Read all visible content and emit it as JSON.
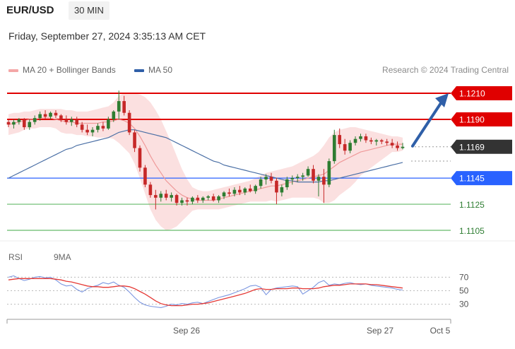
{
  "header": {
    "symbol": "EUR/USD",
    "timeframe": "30 MIN",
    "datetime": "Friday, September 27, 2024 3:35:13 AM CET",
    "credit": "Research © 2024 Trading Central"
  },
  "legend": {
    "ma20_bb": "MA 20 + Bollinger Bands",
    "ma50": "MA 50",
    "rsi": "RSI",
    "rsi_ma": "9MA"
  },
  "colors": {
    "bullish": "#2e7d32",
    "bearish": "#c62828",
    "bollinger": "#f7c6c6",
    "ma20": "#ef9a9a",
    "ma50": "#4a6fa5",
    "resistance": "#e00000",
    "support_blue": "#2962ff",
    "support_green": "#66bb6a",
    "arrow": "#2f5fa8",
    "rsi": "#7b96e0",
    "rsi_ma": "#e53935"
  },
  "chart_data": {
    "type": "candlestick",
    "price_scale": {
      "min": 1.1095,
      "max": 1.1225
    },
    "x_labels": [
      "Sep 26",
      "Sep 27",
      "Oct 5"
    ],
    "levels": [
      {
        "value": 1.121,
        "label": "1.1210",
        "kind": "resistance"
      },
      {
        "value": 1.119,
        "label": "1.1190",
        "kind": "resistance"
      },
      {
        "value": 1.1169,
        "label": "1.1169",
        "kind": "current"
      },
      {
        "value": 1.1145,
        "label": "1.1145",
        "kind": "support_blue"
      },
      {
        "value": 1.1125,
        "label": "1.1125",
        "kind": "support_green"
      },
      {
        "value": 1.1105,
        "label": "1.1105",
        "kind": "support_green"
      }
    ],
    "projection": {
      "from": 1.1169,
      "to": 1.121,
      "direction": "up"
    },
    "candles": [
      [
        1.1188,
        1.119,
        1.1184,
        1.1186
      ],
      [
        1.1186,
        1.119,
        1.1183,
        1.1188
      ],
      [
        1.1188,
        1.1191,
        1.1186,
        1.119
      ],
      [
        1.119,
        1.1191,
        1.1182,
        1.1184
      ],
      [
        1.1184,
        1.119,
        1.1182,
        1.1188
      ],
      [
        1.1188,
        1.1193,
        1.1186,
        1.1191
      ],
      [
        1.1191,
        1.1196,
        1.1189,
        1.1194
      ],
      [
        1.1194,
        1.1197,
        1.119,
        1.1192
      ],
      [
        1.1192,
        1.1196,
        1.119,
        1.1195
      ],
      [
        1.1195,
        1.1197,
        1.1191,
        1.1193
      ],
      [
        1.1193,
        1.1194,
        1.1188,
        1.119
      ],
      [
        1.119,
        1.1193,
        1.1186,
        1.1188
      ],
      [
        1.1188,
        1.1192,
        1.1185,
        1.119
      ],
      [
        1.119,
        1.1192,
        1.1184,
        1.1186
      ],
      [
        1.1186,
        1.1188,
        1.118,
        1.1182
      ],
      [
        1.1182,
        1.1186,
        1.1178,
        1.118
      ],
      [
        1.118,
        1.1184,
        1.1177,
        1.1182
      ],
      [
        1.1182,
        1.1187,
        1.118,
        1.1185
      ],
      [
        1.1185,
        1.1188,
        1.1181,
        1.1183
      ],
      [
        1.1183,
        1.1192,
        1.1182,
        1.119
      ],
      [
        1.119,
        1.1197,
        1.1188,
        1.1196
      ],
      [
        1.1196,
        1.1212,
        1.119,
        1.1204
      ],
      [
        1.1204,
        1.1208,
        1.1193,
        1.1195
      ],
      [
        1.1195,
        1.1197,
        1.1178,
        1.118
      ],
      [
        1.118,
        1.1182,
        1.1165,
        1.1168
      ],
      [
        1.1168,
        1.117,
        1.115,
        1.1153
      ],
      [
        1.1153,
        1.1155,
        1.1138,
        1.114
      ],
      [
        1.114,
        1.1142,
        1.113,
        1.1132
      ],
      [
        1.1132,
        1.1136,
        1.1121,
        1.113
      ],
      [
        1.113,
        1.1135,
        1.1127,
        1.1133
      ],
      [
        1.1133,
        1.1136,
        1.1128,
        1.113
      ],
      [
        1.113,
        1.1134,
        1.1127,
        1.1132
      ],
      [
        1.1132,
        1.1133,
        1.1124,
        1.1126
      ],
      [
        1.1126,
        1.113,
        1.1124,
        1.1128
      ],
      [
        1.1128,
        1.113,
        1.1124,
        1.1127
      ],
      [
        1.1127,
        1.1131,
        1.1125,
        1.113
      ],
      [
        1.113,
        1.1132,
        1.1126,
        1.1128
      ],
      [
        1.1128,
        1.1131,
        1.1126,
        1.113
      ],
      [
        1.113,
        1.1132,
        1.1128,
        1.1131
      ],
      [
        1.1131,
        1.1133,
        1.1127,
        1.1128
      ],
      [
        1.1128,
        1.1132,
        1.1126,
        1.1131
      ],
      [
        1.1131,
        1.1135,
        1.1129,
        1.1134
      ],
      [
        1.1134,
        1.1137,
        1.1131,
        1.1133
      ],
      [
        1.1133,
        1.1138,
        1.1131,
        1.1136
      ],
      [
        1.1136,
        1.1139,
        1.1132,
        1.1134
      ],
      [
        1.1134,
        1.1138,
        1.1132,
        1.1137
      ],
      [
        1.1137,
        1.114,
        1.1134,
        1.1135
      ],
      [
        1.1135,
        1.114,
        1.1133,
        1.1139
      ],
      [
        1.1139,
        1.1146,
        1.1137,
        1.1144
      ],
      [
        1.1144,
        1.1148,
        1.114,
        1.1146
      ],
      [
        1.1146,
        1.1149,
        1.1141,
        1.1143
      ],
      [
        1.1143,
        1.1145,
        1.1125,
        1.1134
      ],
      [
        1.1134,
        1.114,
        1.1131,
        1.1138
      ],
      [
        1.1138,
        1.1146,
        1.1136,
        1.1144
      ],
      [
        1.1144,
        1.1147,
        1.114,
        1.1145
      ],
      [
        1.1145,
        1.1148,
        1.1142,
        1.1146
      ],
      [
        1.1146,
        1.1149,
        1.1143,
        1.1147
      ],
      [
        1.1147,
        1.1154,
        1.1146,
        1.1152
      ],
      [
        1.1152,
        1.1155,
        1.1141,
        1.1143
      ],
      [
        1.1143,
        1.1148,
        1.1131,
        1.1146
      ],
      [
        1.1146,
        1.1152,
        1.1126,
        1.114
      ],
      [
        1.114,
        1.116,
        1.1138,
        1.1158
      ],
      [
        1.1158,
        1.1182,
        1.1156,
        1.1178
      ],
      [
        1.1178,
        1.1183,
        1.1168,
        1.1171
      ],
      [
        1.1171,
        1.1175,
        1.1163,
        1.1166
      ],
      [
        1.1166,
        1.1174,
        1.1164,
        1.1172
      ],
      [
        1.1172,
        1.1177,
        1.117,
        1.1175
      ],
      [
        1.1175,
        1.1179,
        1.1173,
        1.1177
      ],
      [
        1.1177,
        1.1179,
        1.1172,
        1.1174
      ],
      [
        1.1174,
        1.1176,
        1.1171,
        1.1173
      ],
      [
        1.1173,
        1.1175,
        1.117,
        1.1174
      ],
      [
        1.1174,
        1.1175,
        1.1171,
        1.1173
      ],
      [
        1.1173,
        1.1175,
        1.117,
        1.1172
      ],
      [
        1.1172,
        1.1175,
        1.1168,
        1.117
      ],
      [
        1.117,
        1.1173,
        1.1166,
        1.1168
      ],
      [
        1.1168,
        1.1172,
        1.1167,
        1.1169
      ]
    ],
    "ma20": [
      1.1186,
      1.1187,
      1.1188,
      1.1189,
      1.119,
      1.119,
      1.1191,
      1.1191,
      1.1191,
      1.119,
      1.1189,
      1.1188,
      1.1188,
      1.1187,
      1.1187,
      1.1187,
      1.1187,
      1.1187,
      1.1188,
      1.1188,
      1.1189,
      1.119,
      1.1189,
      1.1187,
      1.1183,
      1.1177,
      1.117,
      1.1162,
      1.1155,
      1.1149,
      1.1143,
      1.1139,
      1.1135,
      1.1132,
      1.113,
      1.1129,
      1.1128,
      1.1128,
      1.1128,
      1.1128,
      1.1129,
      1.113,
      1.1131,
      1.1132,
      1.1133,
      1.1134,
      1.1135,
      1.1136,
      1.1137,
      1.1138,
      1.1139,
      1.1139,
      1.114,
      1.1141,
      1.1142,
      1.1143,
      1.1144,
      1.1145,
      1.1146,
      1.1147,
      1.1148,
      1.1151,
      1.1154,
      1.1157,
      1.1159,
      1.1161,
      1.1163,
      1.1165,
      1.1166,
      1.1167,
      1.1168,
      1.1169,
      1.117,
      1.1171,
      1.1171,
      1.1171
    ],
    "bb_upper": [
      1.1194,
      1.1195,
      1.1195,
      1.1196,
      1.1196,
      1.1197,
      1.1198,
      1.1198,
      1.1198,
      1.1198,
      1.1198,
      1.1197,
      1.1197,
      1.1196,
      1.1196,
      1.1196,
      1.1197,
      1.1198,
      1.1199,
      1.12,
      1.1203,
      1.1208,
      1.121,
      1.121,
      1.121,
      1.1209,
      1.1207,
      1.1203,
      1.1197,
      1.119,
      1.1181,
      1.1172,
      1.1162,
      1.1152,
      1.1144,
      1.1138,
      1.1136,
      1.1135,
      1.1135,
      1.1136,
      1.1137,
      1.1138,
      1.1139,
      1.114,
      1.1141,
      1.1142,
      1.1143,
      1.1145,
      1.1147,
      1.1149,
      1.115,
      1.1151,
      1.1152,
      1.1153,
      1.1154,
      1.1156,
      1.1158,
      1.116,
      1.1162,
      1.1165,
      1.117,
      1.1176,
      1.118,
      1.1182,
      1.1183,
      1.1184,
      1.1184,
      1.1183,
      1.1182,
      1.1181,
      1.118,
      1.1179,
      1.1178,
      1.1177,
      1.1177,
      1.1176
    ],
    "bb_lower": [
      1.1178,
      1.1179,
      1.118,
      1.1182,
      1.1183,
      1.1183,
      1.1184,
      1.1184,
      1.1184,
      1.1183,
      1.118,
      1.1179,
      1.1179,
      1.1178,
      1.1178,
      1.1177,
      1.1177,
      1.1176,
      1.1176,
      1.1176,
      1.1175,
      1.1172,
      1.1168,
      1.1164,
      1.1156,
      1.1145,
      1.1133,
      1.1121,
      1.1113,
      1.1108,
      1.1105,
      1.1106,
      1.1108,
      1.1112,
      1.1116,
      1.112,
      1.1121,
      1.1121,
      1.1121,
      1.1121,
      1.1121,
      1.1122,
      1.1123,
      1.1124,
      1.1125,
      1.1126,
      1.1127,
      1.1127,
      1.1127,
      1.1127,
      1.1128,
      1.1127,
      1.1128,
      1.1129,
      1.113,
      1.113,
      1.113,
      1.113,
      1.113,
      1.1129,
      1.1126,
      1.1126,
      1.1128,
      1.1132,
      1.1135,
      1.1138,
      1.1142,
      1.1147,
      1.115,
      1.1153,
      1.1156,
      1.1159,
      1.1162,
      1.1165,
      1.1165,
      1.1166
    ],
    "ma50": [
      1.1145,
      1.1147,
      1.1149,
      1.1151,
      1.1153,
      1.1155,
      1.1157,
      1.1159,
      1.1161,
      1.1163,
      1.1165,
      1.1167,
      1.1168,
      1.117,
      1.1171,
      1.1172,
      1.1173,
      1.1174,
      1.1175,
      1.1176,
      1.1178,
      1.118,
      1.1181,
      1.1182,
      1.1182,
      1.1181,
      1.118,
      1.1179,
      1.1178,
      1.1177,
      1.1176,
      1.1174,
      1.1172,
      1.117,
      1.1168,
      1.1166,
      1.1164,
      1.1162,
      1.116,
      1.1158,
      1.1157,
      1.1155,
      1.1154,
      1.1153,
      1.1152,
      1.1151,
      1.115,
      1.1149,
      1.1148,
      1.1147,
      1.1146,
      1.1145,
      1.1144,
      1.1143,
      1.1143,
      1.1142,
      1.1142,
      1.1142,
      1.1142,
      1.1142,
      1.1143,
      1.1143,
      1.1144,
      1.1145,
      1.1146,
      1.1147,
      1.1148,
      1.1149,
      1.115,
      1.1151,
      1.1152,
      1.1153,
      1.1154,
      1.1155,
      1.1156,
      1.1157
    ],
    "rsi": {
      "levels": [
        70,
        50,
        30
      ],
      "range": [
        15,
        85
      ],
      "values": [
        70,
        72,
        68,
        65,
        67,
        70,
        71,
        69,
        70,
        66,
        60,
        57,
        58,
        52,
        48,
        53,
        56,
        58,
        62,
        60,
        63,
        58,
        55,
        48,
        40,
        33,
        29,
        27,
        26,
        25,
        27,
        30,
        29,
        31,
        30,
        32,
        33,
        31,
        34,
        37,
        40,
        42,
        44,
        47,
        50,
        53,
        57,
        58,
        55,
        44,
        52,
        54,
        55,
        56,
        57,
        56,
        45,
        50,
        55,
        62,
        65,
        58,
        60,
        59,
        61,
        62,
        60,
        59,
        60,
        58,
        57,
        56,
        55,
        54,
        52,
        51
      ],
      "ma": [
        66,
        67,
        68,
        68,
        68,
        68,
        68,
        68,
        68,
        67,
        66,
        64,
        63,
        61,
        59,
        57,
        56,
        56,
        55,
        55,
        56,
        57,
        57,
        56,
        53,
        49,
        45,
        40,
        35,
        31,
        29,
        28,
        28,
        28,
        29,
        30,
        30,
        31,
        32,
        34,
        36,
        38,
        40,
        42,
        44,
        46,
        49,
        52,
        53,
        52,
        52,
        53,
        53,
        53,
        54,
        54,
        53,
        53,
        53,
        54,
        56,
        57,
        58,
        58,
        59,
        60,
        60,
        60,
        60,
        59,
        59,
        58,
        57,
        56,
        55,
        54
      ]
    }
  }
}
